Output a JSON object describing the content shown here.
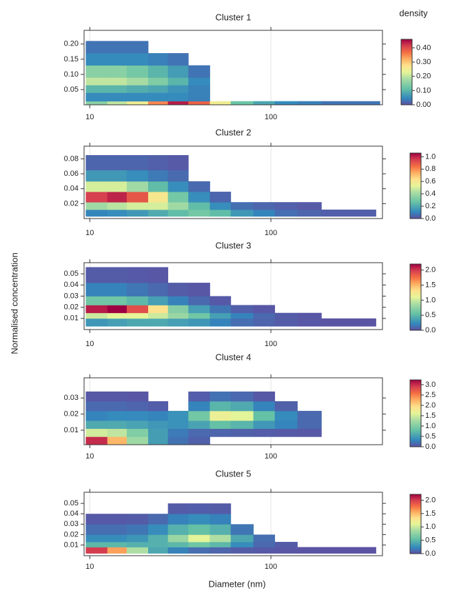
{
  "xlabel": "Diameter (nm)",
  "ylabel": "Normalised concentration",
  "colorbar_label": "density",
  "chart_data": [
    {
      "type": "heatmap",
      "title": "Cluster 1",
      "log_x": true,
      "grid": true,
      "xlim": [
        9.3,
        413
      ],
      "xticks": [
        10,
        100
      ],
      "ylim": [
        0,
        0.245
      ],
      "yticks": [
        {
          "value": 0.2,
          "label": "0.20"
        },
        0.15,
        {
          "value": 0.1,
          "label": "0.10"
        },
        0.05
      ],
      "clim": [
        0,
        0.46
      ],
      "cticks": [
        {
          "value": 0,
          "label": "0.00"
        },
        {
          "value": 0.1,
          "label": "0.10"
        },
        {
          "value": 0.2,
          "label": "0.20"
        },
        {
          "value": 0.3,
          "label": "0.30"
        },
        {
          "value": 0.4,
          "label": "0.40"
        }
      ],
      "xbins": [
        9.5,
        12.5,
        16,
        21,
        27,
        35,
        46,
        60,
        80,
        105,
        140,
        190,
        400
      ],
      "ybins": [
        0,
        0.012,
        0.04,
        0.065,
        0.09,
        0.13,
        0.17,
        0.21
      ],
      "z": [
        [
          0.15,
          0.2,
          0.25,
          0.35,
          0.44,
          0.38,
          0.25,
          0.12,
          0.08,
          0.05,
          0.04,
          0.03
        ],
        [
          0.05,
          0.05,
          0.05,
          0.05,
          0.05,
          0.04,
          null,
          null,
          null,
          null,
          null,
          null
        ],
        [
          0.1,
          0.1,
          0.09,
          0.08,
          0.06,
          0.04,
          null,
          null,
          null,
          null,
          null,
          null
        ],
        [
          0.2,
          0.2,
          0.18,
          0.14,
          0.1,
          0.05,
          null,
          null,
          null,
          null,
          null,
          null
        ],
        [
          0.15,
          0.15,
          0.13,
          0.1,
          0.07,
          0.03,
          null,
          null,
          null,
          null,
          null,
          null
        ],
        [
          0.05,
          0.05,
          0.05,
          0.04,
          0.03,
          null,
          null,
          null,
          null,
          null,
          null,
          null
        ],
        [
          0.03,
          0.03,
          0.03,
          null,
          null,
          null,
          null,
          null,
          null,
          null,
          null,
          null
        ]
      ]
    },
    {
      "type": "heatmap",
      "title": "Cluster 2",
      "log_x": true,
      "grid": true,
      "xlim": [
        9.3,
        413
      ],
      "xticks": [
        10,
        100
      ],
      "ylim": [
        0,
        0.097
      ],
      "yticks": [
        0.08,
        0.06,
        0.04,
        0.02
      ],
      "clim": [
        0,
        1.06
      ],
      "cticks": [
        {
          "value": 0,
          "label": "0.0"
        },
        0.2,
        0.4,
        0.6,
        0.8,
        {
          "value": 1,
          "label": "1.0"
        }
      ],
      "xbins": [
        9.5,
        12.5,
        16,
        21,
        27,
        35,
        46,
        60,
        80,
        105,
        140,
        190,
        380
      ],
      "ybins": [
        0.003,
        0.012,
        0.022,
        0.036,
        0.05,
        0.065,
        0.085
      ],
      "z": [
        [
          0.1,
          0.12,
          0.15,
          0.2,
          0.25,
          0.3,
          0.25,
          0.15,
          0.1,
          0.06,
          0.04,
          0.03
        ],
        [
          0.4,
          0.45,
          0.5,
          0.5,
          0.4,
          0.25,
          0.12,
          0.06,
          0.04,
          0.03,
          0.02,
          null
        ],
        [
          0.95,
          1.0,
          0.9,
          0.6,
          0.3,
          0.12,
          0.04,
          null,
          null,
          null,
          null,
          null
        ],
        [
          0.5,
          0.5,
          0.4,
          0.25,
          0.12,
          0.05,
          null,
          null,
          null,
          null,
          null,
          null
        ],
        [
          0.15,
          0.15,
          0.12,
          0.08,
          0.05,
          null,
          null,
          null,
          null,
          null,
          null,
          null
        ],
        [
          0.04,
          0.04,
          0.04,
          0.03,
          0.02,
          null,
          null,
          null,
          null,
          null,
          null,
          null
        ]
      ]
    },
    {
      "type": "heatmap",
      "title": "Cluster 3",
      "log_x": true,
      "grid": true,
      "xlim": [
        9.3,
        413
      ],
      "xticks": [
        10,
        100
      ],
      "ylim": [
        0,
        0.06
      ],
      "yticks": [
        0.05,
        0.04,
        0.03,
        0.02,
        0.01
      ],
      "clim": [
        0,
        2.2
      ],
      "cticks": [
        {
          "value": 0,
          "label": "0.0"
        },
        0.5,
        {
          "value": 1,
          "label": "1.0"
        },
        1.5,
        {
          "value": 2,
          "label": "2.0"
        }
      ],
      "xbins": [
        9.5,
        12.5,
        16,
        21,
        27,
        35,
        46,
        60,
        80,
        105,
        140,
        190,
        380
      ],
      "ybins": [
        0.003,
        0.01,
        0.015,
        0.022,
        0.03,
        0.042,
        0.056
      ],
      "z": [
        [
          0.3,
          0.35,
          0.4,
          0.4,
          0.35,
          0.3,
          0.2,
          0.12,
          0.08,
          0.05,
          0.03,
          0.02
        ],
        [
          1.0,
          1.1,
          1.1,
          1.0,
          0.8,
          0.6,
          0.35,
          0.2,
          0.1,
          0.05,
          0.03,
          null
        ],
        [
          2.1,
          2.2,
          1.9,
          1.3,
          0.7,
          0.35,
          0.15,
          0.06,
          0.03,
          null,
          null,
          null
        ],
        [
          0.6,
          0.6,
          0.5,
          0.35,
          0.2,
          0.1,
          0.04,
          null,
          null,
          null,
          null,
          null
        ],
        [
          0.2,
          0.2,
          0.15,
          0.1,
          0.05,
          0.03,
          null,
          null,
          null,
          null,
          null,
          null
        ],
        [
          0.05,
          0.05,
          0.04,
          0.03,
          null,
          null,
          null,
          null,
          null,
          null,
          null,
          null
        ]
      ]
    },
    {
      "type": "heatmap",
      "title": "Cluster 4",
      "log_x": true,
      "grid": true,
      "xlim": [
        9.3,
        413
      ],
      "xticks": [
        10,
        100
      ],
      "ylim": [
        0.001,
        0.0425
      ],
      "yticks": [
        0.03,
        0.02,
        0.01
      ],
      "clim": [
        0,
        3.23
      ],
      "cticks": [
        {
          "value": 0,
          "label": "0.0"
        },
        0.5,
        {
          "value": 1,
          "label": "1.0"
        },
        1.5,
        {
          "value": 2,
          "label": "2.0"
        },
        2.5,
        {
          "value": 3,
          "label": "3.0"
        }
      ],
      "xbins": [
        9.5,
        12.5,
        16,
        21,
        27,
        35,
        46,
        60,
        80,
        105,
        140,
        190,
        400
      ],
      "ybins": [
        0.001,
        0.006,
        0.011,
        0.016,
        0.022,
        0.028,
        0.034
      ],
      "z": [
        [
          3.0,
          2.2,
          1.2,
          0.5,
          0.2,
          0.1,
          null,
          null,
          null,
          null,
          null,
          null
        ],
        [
          1.5,
          1.4,
          1.0,
          0.5,
          0.25,
          0.15,
          0.12,
          0.1,
          0.08,
          0.06,
          0.05,
          null
        ],
        [
          0.6,
          0.6,
          0.55,
          0.45,
          0.4,
          0.55,
          0.8,
          0.7,
          0.45,
          0.3,
          0.15,
          null
        ],
        [
          0.3,
          0.35,
          0.35,
          0.3,
          0.4,
          0.9,
          1.7,
          1.6,
          0.8,
          0.35,
          0.15,
          null
        ],
        [
          0.15,
          0.15,
          0.12,
          0.08,
          null,
          0.3,
          0.7,
          0.6,
          0.3,
          0.1,
          null,
          null
        ],
        [
          0.05,
          0.05,
          0.04,
          null,
          null,
          0.08,
          0.2,
          0.15,
          0.05,
          null,
          null,
          null
        ]
      ]
    },
    {
      "type": "heatmap",
      "title": "Cluster 5",
      "log_x": true,
      "grid": true,
      "xlim": [
        9.3,
        413
      ],
      "xticks": [
        10,
        100
      ],
      "ylim": [
        -0.0003,
        0.0607
      ],
      "yticks": [
        0.05,
        0.04,
        0.03,
        0.02,
        0.01
      ],
      "clim": [
        0,
        2.22
      ],
      "cticks": [
        {
          "value": 0,
          "label": "0.0"
        },
        0.5,
        {
          "value": 1,
          "label": "1.0"
        },
        1.5,
        {
          "value": 2,
          "label": "2.0"
        }
      ],
      "xbins": [
        9.5,
        12.5,
        16,
        21,
        27,
        35,
        46,
        60,
        80,
        105,
        140,
        190,
        380
      ],
      "ybins": [
        0.002,
        0.008,
        0.013,
        0.02,
        0.03,
        0.04,
        0.05
      ],
      "z": [
        [
          2.0,
          1.6,
          0.9,
          0.4,
          0.2,
          0.12,
          0.08,
          0.05,
          0.04,
          0.03,
          0.02,
          0.01
        ],
        [
          0.5,
          0.5,
          0.45,
          0.45,
          0.5,
          0.6,
          0.5,
          0.25,
          0.1,
          0.05,
          null,
          null
        ],
        [
          0.25,
          0.25,
          0.3,
          0.45,
          0.8,
          1.1,
          0.9,
          0.4,
          0.12,
          null,
          null,
          null
        ],
        [
          0.12,
          0.12,
          0.15,
          0.25,
          0.45,
          0.55,
          0.45,
          0.15,
          null,
          null,
          null,
          null
        ],
        [
          0.04,
          0.04,
          0.05,
          0.1,
          0.2,
          0.25,
          0.2,
          null,
          null,
          null,
          null,
          null
        ],
        [
          null,
          null,
          null,
          null,
          0.05,
          0.06,
          0.05,
          null,
          null,
          null,
          null,
          null
        ]
      ]
    }
  ]
}
